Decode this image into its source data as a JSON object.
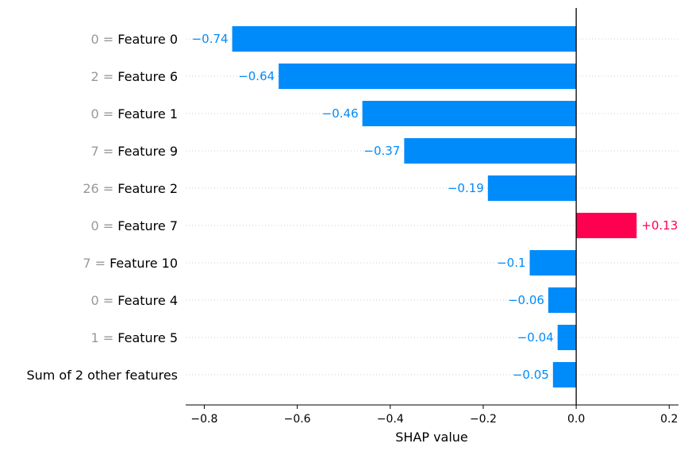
{
  "chart_data": {
    "type": "bar",
    "orientation": "horizontal",
    "xlabel": "SHAP value",
    "xlim": [
      -0.84,
      0.22
    ],
    "xticks": [
      -0.8,
      -0.6,
      -0.4,
      -0.2,
      0.0,
      0.2
    ],
    "xtick_labels": [
      "−0.8",
      "−0.6",
      "−0.4",
      "−0.2",
      "0.0",
      "0.2"
    ],
    "grid": false,
    "bars": [
      {
        "prefix": "0 = ",
        "feature": "Feature 0",
        "label": "0 = Feature 0",
        "value": -0.74,
        "value_label": "−0.74"
      },
      {
        "prefix": "2 = ",
        "feature": "Feature 6",
        "label": "2 = Feature 6",
        "value": -0.64,
        "value_label": "−0.64"
      },
      {
        "prefix": "0 = ",
        "feature": "Feature 1",
        "label": "0 = Feature 1",
        "value": -0.46,
        "value_label": "−0.46"
      },
      {
        "prefix": "7 = ",
        "feature": "Feature 9",
        "label": "7 = Feature 9",
        "value": -0.37,
        "value_label": "−0.37"
      },
      {
        "prefix": "26 = ",
        "feature": "Feature 2",
        "label": "26 = Feature 2",
        "value": -0.19,
        "value_label": "−0.19"
      },
      {
        "prefix": "0 = ",
        "feature": "Feature 7",
        "label": "0 = Feature 7",
        "value": 0.13,
        "value_label": "+0.13"
      },
      {
        "prefix": "7 = ",
        "feature": "Feature 10",
        "label": "7 = Feature 10",
        "value": -0.1,
        "value_label": "−0.1"
      },
      {
        "prefix": "0 = ",
        "feature": "Feature 4",
        "label": "0 = Feature 4",
        "value": -0.06,
        "value_label": "−0.06"
      },
      {
        "prefix": "1 = ",
        "feature": "Feature 5",
        "label": "1 = Feature 5",
        "value": -0.04,
        "value_label": "−0.04"
      },
      {
        "prefix": "",
        "feature": "Sum of 2 other features",
        "label": "Sum of 2 other features",
        "value": -0.05,
        "value_label": "−0.05"
      }
    ],
    "colors": {
      "negative": "#008bfb",
      "positive": "#ff0051",
      "prefix_text": "#999999",
      "feature_text": "#000000",
      "zero_line": "#000000",
      "row_guide": "#cccccc"
    }
  }
}
